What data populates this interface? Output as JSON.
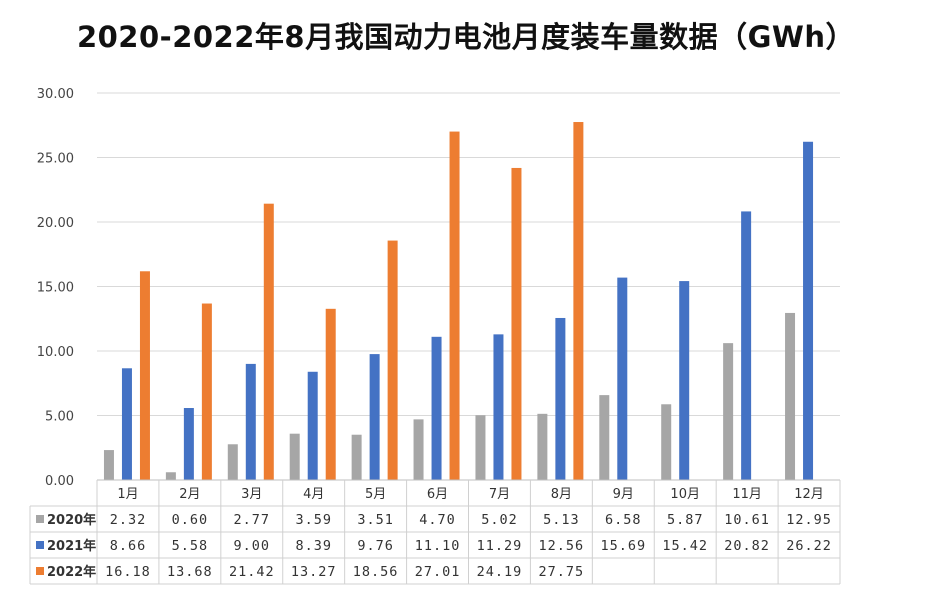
{
  "chart_data": {
    "type": "bar",
    "title": "2020-2022年8月我国动力电池月度装车量数据（GWh）",
    "categories": [
      "1月",
      "2月",
      "3月",
      "4月",
      "5月",
      "6月",
      "7月",
      "8月",
      "9月",
      "10月",
      "11月",
      "12月"
    ],
    "ylim": [
      0,
      30
    ],
    "yticks": [
      "0.00",
      "5.00",
      "10.00",
      "15.00",
      "20.00",
      "25.00",
      "30.00"
    ],
    "grid": true,
    "legend": "data-table",
    "series": [
      {
        "name": "2020年",
        "color": "#a6a6a6",
        "values": [
          2.32,
          0.6,
          2.77,
          3.59,
          3.51,
          4.7,
          5.02,
          5.13,
          6.58,
          5.87,
          10.61,
          12.95
        ],
        "labels": [
          "2.32",
          "0.60",
          "2.77",
          "3.59",
          "3.51",
          "4.70",
          "5.02",
          "5.13",
          "6.58",
          "5.87",
          "10.61",
          "12.95"
        ]
      },
      {
        "name": "2021年",
        "color": "#4472c4",
        "values": [
          8.66,
          5.58,
          9.0,
          8.39,
          9.76,
          11.1,
          11.29,
          12.56,
          15.69,
          15.42,
          20.82,
          26.22
        ],
        "labels": [
          "8.66",
          "5.58",
          "9.00",
          "8.39",
          "9.76",
          "11.10",
          "11.29",
          "12.56",
          "15.69",
          "15.42",
          "20.82",
          "26.22"
        ]
      },
      {
        "name": "2022年",
        "color": "#ed7d31",
        "values": [
          16.18,
          13.68,
          21.42,
          13.27,
          18.56,
          27.01,
          24.19,
          27.75,
          null,
          null,
          null,
          null
        ],
        "labels": [
          "16.18",
          "13.68",
          "21.42",
          "13.27",
          "18.56",
          "27.01",
          "24.19",
          "27.75",
          "",
          "",
          "",
          ""
        ]
      }
    ]
  }
}
